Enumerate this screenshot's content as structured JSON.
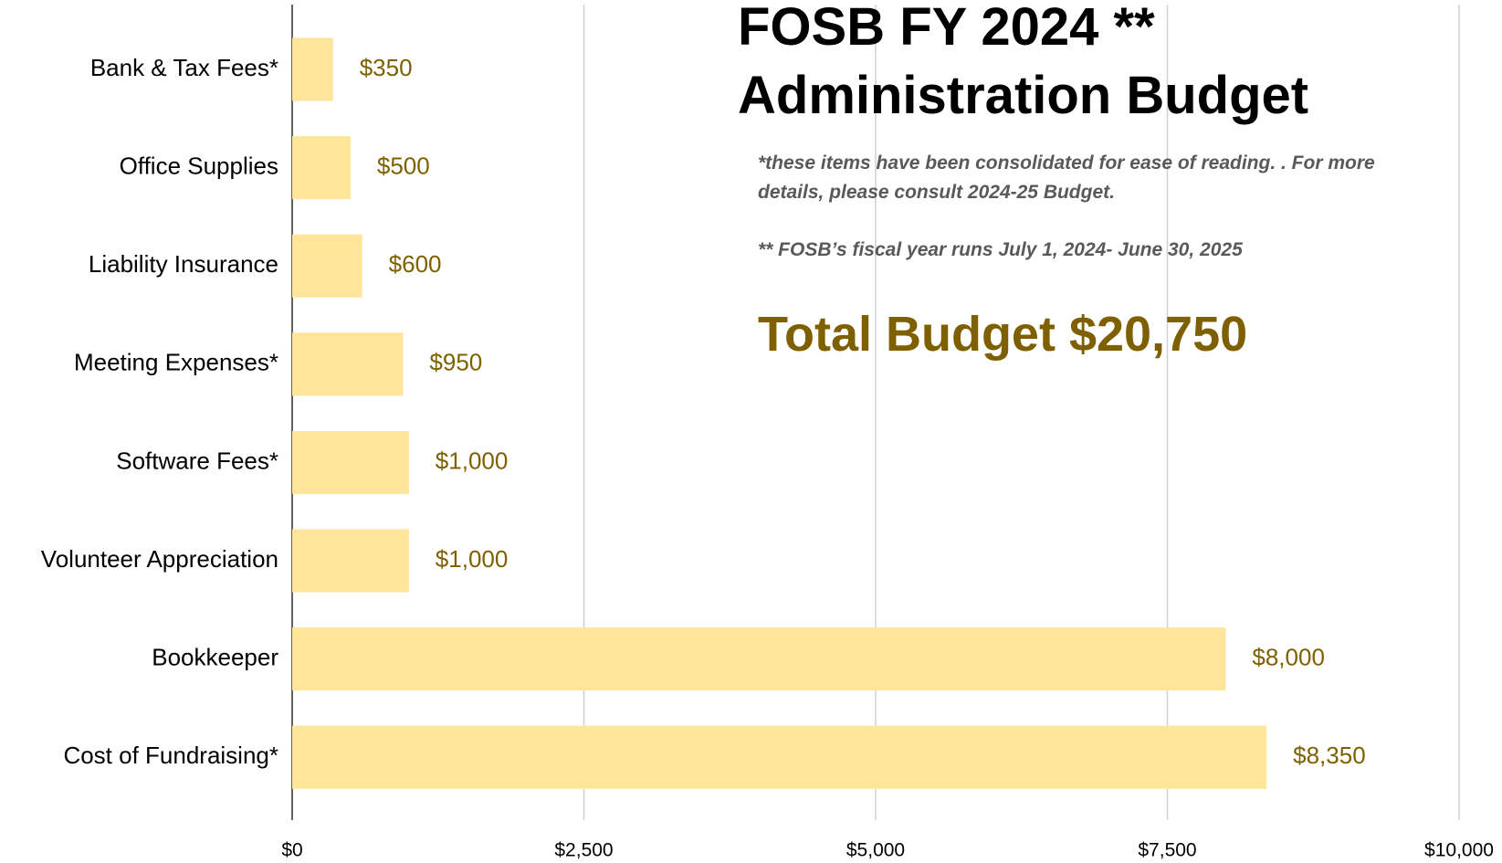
{
  "chart_data": {
    "type": "hbar",
    "title": [
      "FOSB FY 2024 **",
      "Administration Budget"
    ],
    "annotations": [
      "*these items have been consolidated for ease of reading. . For more details, please consult 2024-25 Budget.",
      "** FOSB’s fiscal year runs July 1, 2024- June 30, 2025",
      "Total Budget $20,750"
    ],
    "categories": [
      "Bank & Tax Fees*",
      "Office Supplies",
      "Liability Insurance",
      "Meeting Expenses*",
      "Software Fees*",
      "Volunteer Appreciation",
      "Bookkeeper",
      "Cost of Fundraising*"
    ],
    "values": [
      350,
      500,
      600,
      950,
      1000,
      1000,
      8000,
      8350
    ],
    "value_labels": [
      "$350",
      "$500",
      "$600",
      "$950",
      "$1,000",
      "$1,000",
      "$8,000",
      "$8,350"
    ],
    "color": "#ffe599",
    "label_color": "#7f6000",
    "xlim": [
      0,
      10000
    ],
    "xticks": [
      {
        "value": 0,
        "label": "$0"
      },
      {
        "value": 2500,
        "label": "$2,500"
      },
      {
        "value": 5000,
        "label": "$5,000"
      },
      {
        "value": 7500,
        "label": "$7,500"
      },
      {
        "value": 10000,
        "label": "$10,000"
      }
    ],
    "grid": true
  }
}
